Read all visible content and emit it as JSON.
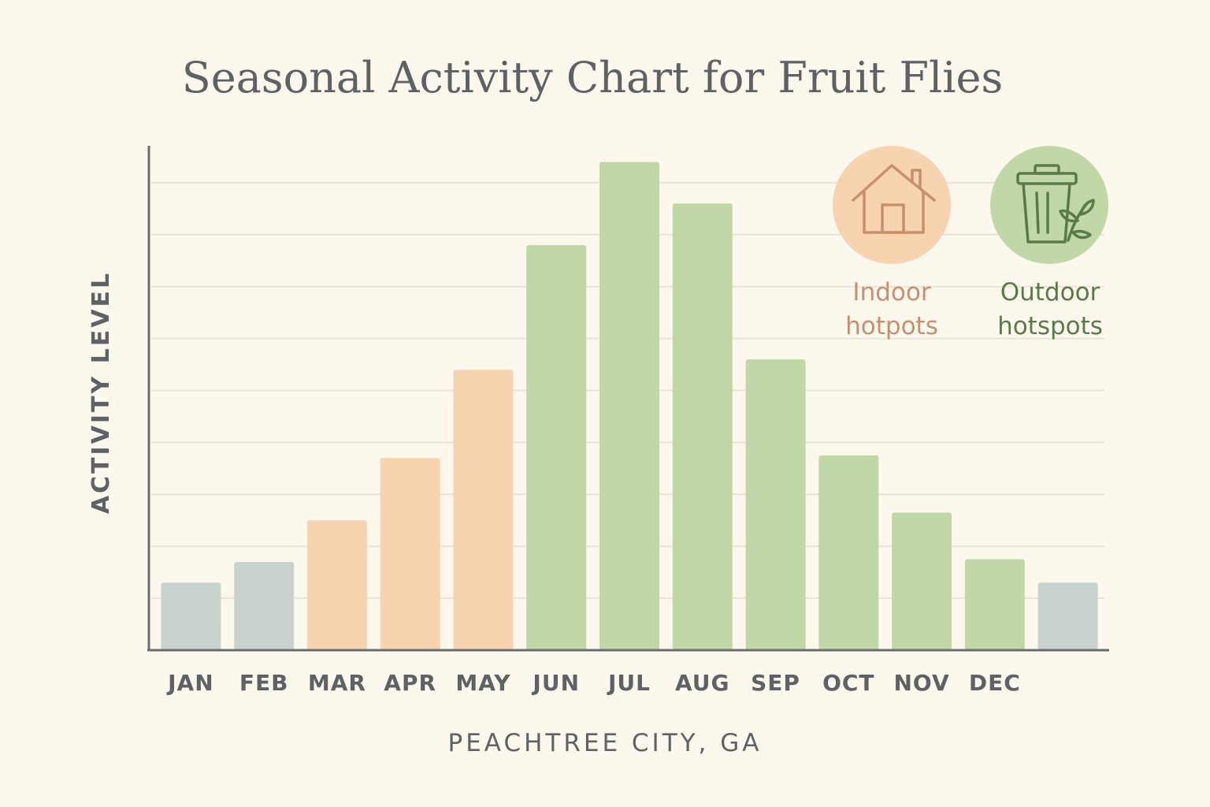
{
  "chart_data": {
    "type": "bar",
    "title": "Seasonal Activity Chart for Fruit Flies",
    "ylabel": "ACTIVITY LEVEL",
    "xlabel": "PEACHTREE CITY, GA",
    "categories": [
      "JAN",
      "FEB",
      "MAR",
      "APR",
      "MAY",
      "JUN",
      "JUL",
      "AUG",
      "SEP",
      "OCT",
      "NOV",
      "DEC",
      ""
    ],
    "values": [
      1.3,
      1.7,
      2.5,
      3.7,
      5.4,
      7.8,
      9.4,
      8.6,
      5.6,
      3.75,
      2.65,
      1.75,
      1.3
    ],
    "bar_colors": [
      "#c8d3ce",
      "#c8d3ce",
      "#f8d3b0",
      "#f8d3b0",
      "#f8d3b0",
      "#c1d7a6",
      "#c1d7a6",
      "#c1d7a6",
      "#c1d7a6",
      "#c1d7a6",
      "#c1d7a6",
      "#c1d7a6",
      "#c8d3ce"
    ],
    "ylim": [
      0,
      10
    ],
    "grid": true,
    "legend_position": "top-right",
    "legend": [
      {
        "label_line1": "Indoor",
        "label_line2": "hotpots",
        "icon": "house-icon",
        "circle_color": "#f8d3b0",
        "text_color": "#c8906a"
      },
      {
        "label_line1": "Outdoor",
        "label_line2": "hotspots",
        "icon": "trash-can-with-plant-icon",
        "circle_color": "#c1d7a6",
        "text_color": "#5b7a4a"
      }
    ],
    "colors": {
      "axis": "#6a6d6e",
      "grid": "#e9e4d6",
      "text": "#5e6264"
    }
  }
}
